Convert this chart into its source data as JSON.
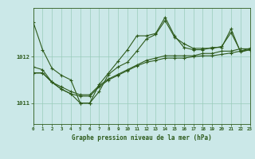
{
  "bg_color": "#cbe8e8",
  "grid_color": "#99ccbb",
  "line_color": "#2d5a1b",
  "xlabel": "Graphe pression niveau de la mer (hPa)",
  "xlim": [
    0,
    23
  ],
  "ylim": [
    1010.55,
    1013.05
  ],
  "yticks": [
    1011,
    1012
  ],
  "xticks": [
    0,
    1,
    2,
    3,
    4,
    5,
    6,
    7,
    8,
    9,
    10,
    11,
    12,
    13,
    14,
    15,
    16,
    17,
    18,
    19,
    20,
    21,
    22,
    23
  ],
  "series1": [
    1012.75,
    1012.15,
    1011.75,
    1011.6,
    1011.5,
    1011.0,
    1011.0,
    1011.4,
    1011.65,
    1011.9,
    1012.15,
    1012.45,
    1012.45,
    1012.5,
    1012.85,
    1012.45,
    1012.2,
    1012.15,
    1012.15,
    1012.2,
    1012.2,
    1012.6,
    1012.1,
    1012.15
  ],
  "series2": [
    1011.65,
    1011.65,
    1011.45,
    1011.3,
    1011.2,
    1011.15,
    1011.15,
    1011.35,
    1011.5,
    1011.6,
    1011.7,
    1011.8,
    1011.88,
    1011.92,
    1011.97,
    1011.97,
    1011.97,
    1012.0,
    1012.02,
    1012.02,
    1012.05,
    1012.08,
    1012.12,
    1012.15
  ],
  "series3": [
    1011.65,
    1011.65,
    1011.45,
    1011.35,
    1011.25,
    1011.18,
    1011.18,
    1011.38,
    1011.52,
    1011.62,
    1011.72,
    1011.82,
    1011.92,
    1011.97,
    1012.02,
    1012.02,
    1012.02,
    1012.02,
    1012.07,
    1012.07,
    1012.12,
    1012.12,
    1012.17,
    1012.17
  ],
  "series4": [
    1011.78,
    1011.72,
    1011.45,
    1011.3,
    1011.2,
    1011.0,
    1011.0,
    1011.25,
    1011.62,
    1011.78,
    1011.88,
    1012.12,
    1012.38,
    1012.48,
    1012.78,
    1012.42,
    1012.28,
    1012.18,
    1012.18,
    1012.18,
    1012.22,
    1012.52,
    1012.12,
    1012.18
  ]
}
